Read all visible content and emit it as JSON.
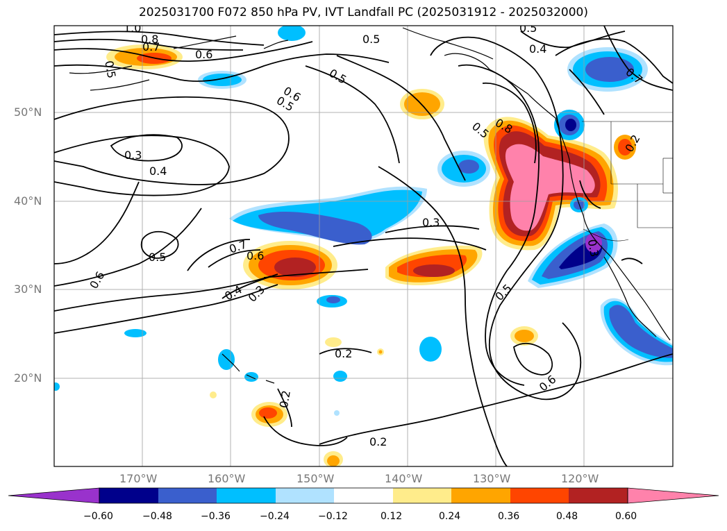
{
  "title": "2025031700 F072 850 hPa PV, IVT Landfall PC (2025031912 - 2025032000)",
  "lat_ticks": [
    "50°N",
    "40°N",
    "30°N",
    "20°N"
  ],
  "lon_ticks": [
    "170°W",
    "160°W",
    "150°W",
    "140°W",
    "130°W",
    "120°W"
  ],
  "colorbar": {
    "labels": [
      "−0.60",
      "−0.48",
      "−0.36",
      "−0.24",
      "−0.12",
      "0.12",
      "0.24",
      "0.36",
      "0.48",
      "0.60"
    ],
    "colors": [
      "#9932cc",
      "#00008b",
      "#3a5fcd",
      "#00bfff",
      "#b0e2ff",
      "#ffffff",
      "#ffec8b",
      "#ffa500",
      "#ff4500",
      "#b22222",
      "#ff82ab"
    ]
  },
  "contour_labels": [
    "1.0",
    "0.8",
    "0.7",
    "0.6",
    "0.5",
    "0.5",
    "0.5",
    "0.5",
    "0.6",
    "0.3",
    "0.4",
    "0.5",
    "0.7",
    "0.6",
    "0.4",
    "0.3",
    "0.6",
    "0.3",
    "0.2",
    "0.2",
    "0.2",
    "0.5",
    "0.6",
    "0.8",
    "0.5",
    "0.4",
    "0.7",
    "0.3",
    "0.2"
  ]
}
